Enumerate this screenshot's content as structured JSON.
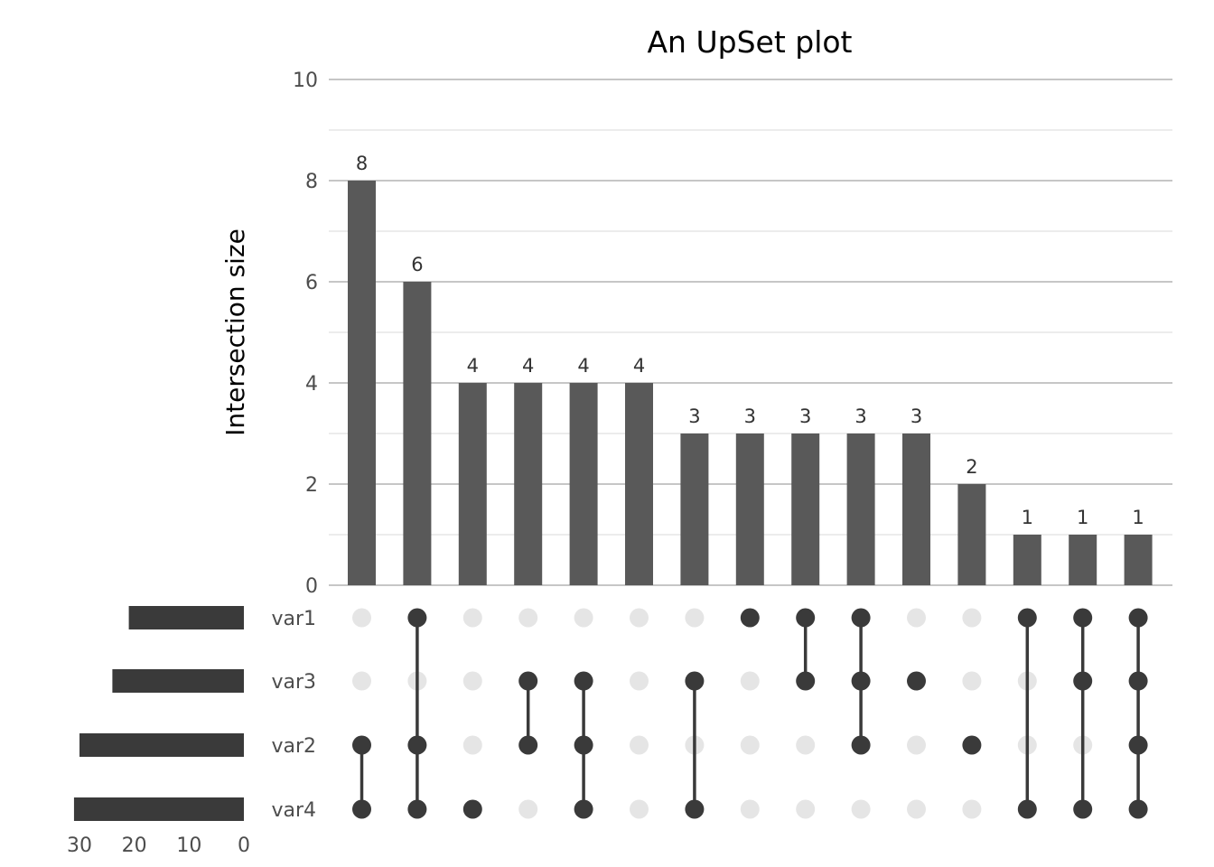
{
  "chart_data": {
    "type": "bar",
    "title": "An UpSet plot",
    "ylabel": "Intersection size",
    "ylim": [
      0,
      10
    ],
    "yticks": [
      0,
      2,
      4,
      6,
      8,
      10
    ],
    "grid": true,
    "sets": [
      "var1",
      "var3",
      "var2",
      "var4"
    ],
    "set_sizes": [
      21,
      24,
      30,
      31
    ],
    "set_size_ticks": [
      30,
      20,
      10,
      0
    ],
    "set_size_max": 30,
    "intersections": [
      {
        "sets": [
          "var2",
          "var4"
        ],
        "value": 8
      },
      {
        "sets": [
          "var1",
          "var2",
          "var4"
        ],
        "value": 6
      },
      {
        "sets": [
          "var4"
        ],
        "value": 4
      },
      {
        "sets": [
          "var3",
          "var2"
        ],
        "value": 4
      },
      {
        "sets": [
          "var3",
          "var2",
          "var4"
        ],
        "value": 4
      },
      {
        "sets": [],
        "value": 4
      },
      {
        "sets": [
          "var3",
          "var4"
        ],
        "value": 3
      },
      {
        "sets": [
          "var1"
        ],
        "value": 3
      },
      {
        "sets": [
          "var1",
          "var3"
        ],
        "value": 3
      },
      {
        "sets": [
          "var1",
          "var3",
          "var2"
        ],
        "value": 3
      },
      {
        "sets": [
          "var3"
        ],
        "value": 3
      },
      {
        "sets": [
          "var2"
        ],
        "value": 2
      },
      {
        "sets": [
          "var1",
          "var4"
        ],
        "value": 1
      },
      {
        "sets": [
          "var1",
          "var3",
          "var4"
        ],
        "value": 1
      },
      {
        "sets": [
          "var1",
          "var3",
          "var2",
          "var4"
        ],
        "value": 1
      }
    ],
    "colors": {
      "bar": "#595959",
      "dot_active": "#3a3a3a",
      "dot_inactive": "#e5e5e5",
      "set_bar": "#3a3a3a",
      "grid_major": "#bebebe",
      "grid_minor": "#e6e6e6",
      "text": "#4d4d4d",
      "title": "#000000"
    }
  }
}
